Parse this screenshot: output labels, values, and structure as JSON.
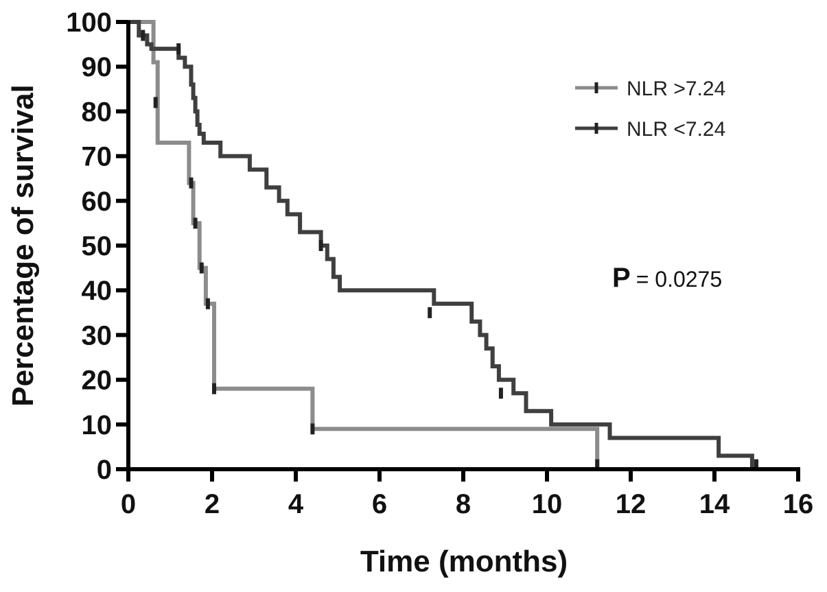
{
  "chart_data": {
    "type": "line",
    "step": true,
    "xlabel": "Time (months)",
    "ylabel": "Percentage of survival",
    "xlim": [
      0,
      16
    ],
    "ylim": [
      0,
      100
    ],
    "xticks": [
      0,
      2,
      4,
      6,
      8,
      10,
      12,
      14,
      16
    ],
    "yticks": [
      0,
      10,
      20,
      30,
      40,
      50,
      60,
      70,
      80,
      90,
      100
    ],
    "grid": false,
    "legend_position": "top-right",
    "annotation": {
      "label": "P",
      "text": "= 0.0275"
    },
    "series": [
      {
        "name": "NLR >7.24",
        "color": "#8c8c8c",
        "x": [
          0,
          0.6,
          0.6,
          0.7,
          0.7,
          1.45,
          1.45,
          1.55,
          1.55,
          1.7,
          1.7,
          1.85,
          1.85,
          2.05,
          2.05,
          4.4,
          4.4,
          11.2,
          11.2
        ],
        "y": [
          100,
          100,
          91,
          91,
          73,
          73,
          64,
          64,
          55,
          55,
          45,
          45,
          37,
          37,
          18,
          18,
          9,
          9,
          0
        ],
        "censored": [
          [
            0.65,
            82
          ],
          [
            1.5,
            64
          ],
          [
            1.6,
            55
          ],
          [
            1.75,
            45
          ],
          [
            1.9,
            37
          ],
          [
            2.05,
            18
          ],
          [
            4.4,
            9
          ],
          [
            11.2,
            1
          ]
        ]
      },
      {
        "name": "NLR <7.24",
        "color": "#3f3f3f",
        "x": [
          0,
          0.25,
          0.25,
          0.45,
          0.45,
          0.55,
          0.55,
          1.2,
          1.2,
          1.35,
          1.35,
          1.5,
          1.5,
          1.55,
          1.55,
          1.6,
          1.6,
          1.65,
          1.65,
          1.7,
          1.7,
          1.8,
          1.8,
          2.2,
          2.2,
          2.9,
          2.9,
          3.3,
          3.3,
          3.6,
          3.6,
          3.8,
          3.8,
          4.1,
          4.1,
          4.6,
          4.6,
          4.75,
          4.75,
          4.9,
          4.9,
          5.05,
          5.05,
          7.3,
          7.3,
          8.2,
          8.2,
          8.4,
          8.4,
          8.55,
          8.55,
          8.7,
          8.7,
          8.85,
          8.85,
          9.2,
          9.2,
          9.5,
          9.5,
          10.1,
          10.1,
          11.5,
          11.5,
          14.1,
          14.1,
          14.9,
          14.9
        ],
        "y": [
          100,
          100,
          97,
          97,
          95,
          95,
          94,
          94,
          92,
          92,
          90,
          90,
          86,
          86,
          83,
          83,
          80,
          80,
          77,
          77,
          75,
          75,
          73,
          73,
          70,
          70,
          67,
          67,
          63,
          63,
          60,
          60,
          57,
          57,
          53,
          53,
          50,
          50,
          47,
          47,
          43,
          43,
          40,
          40,
          37,
          37,
          33,
          33,
          30,
          30,
          27,
          27,
          23,
          23,
          20,
          20,
          17,
          17,
          13,
          13,
          10,
          10,
          7,
          7,
          3,
          3,
          0
        ],
        "censored": [
          [
            0.35,
            97
          ],
          [
            1.2,
            94
          ],
          [
            4.6,
            50
          ],
          [
            7.2,
            35
          ],
          [
            8.9,
            17
          ],
          [
            15.0,
            1
          ]
        ]
      }
    ]
  }
}
